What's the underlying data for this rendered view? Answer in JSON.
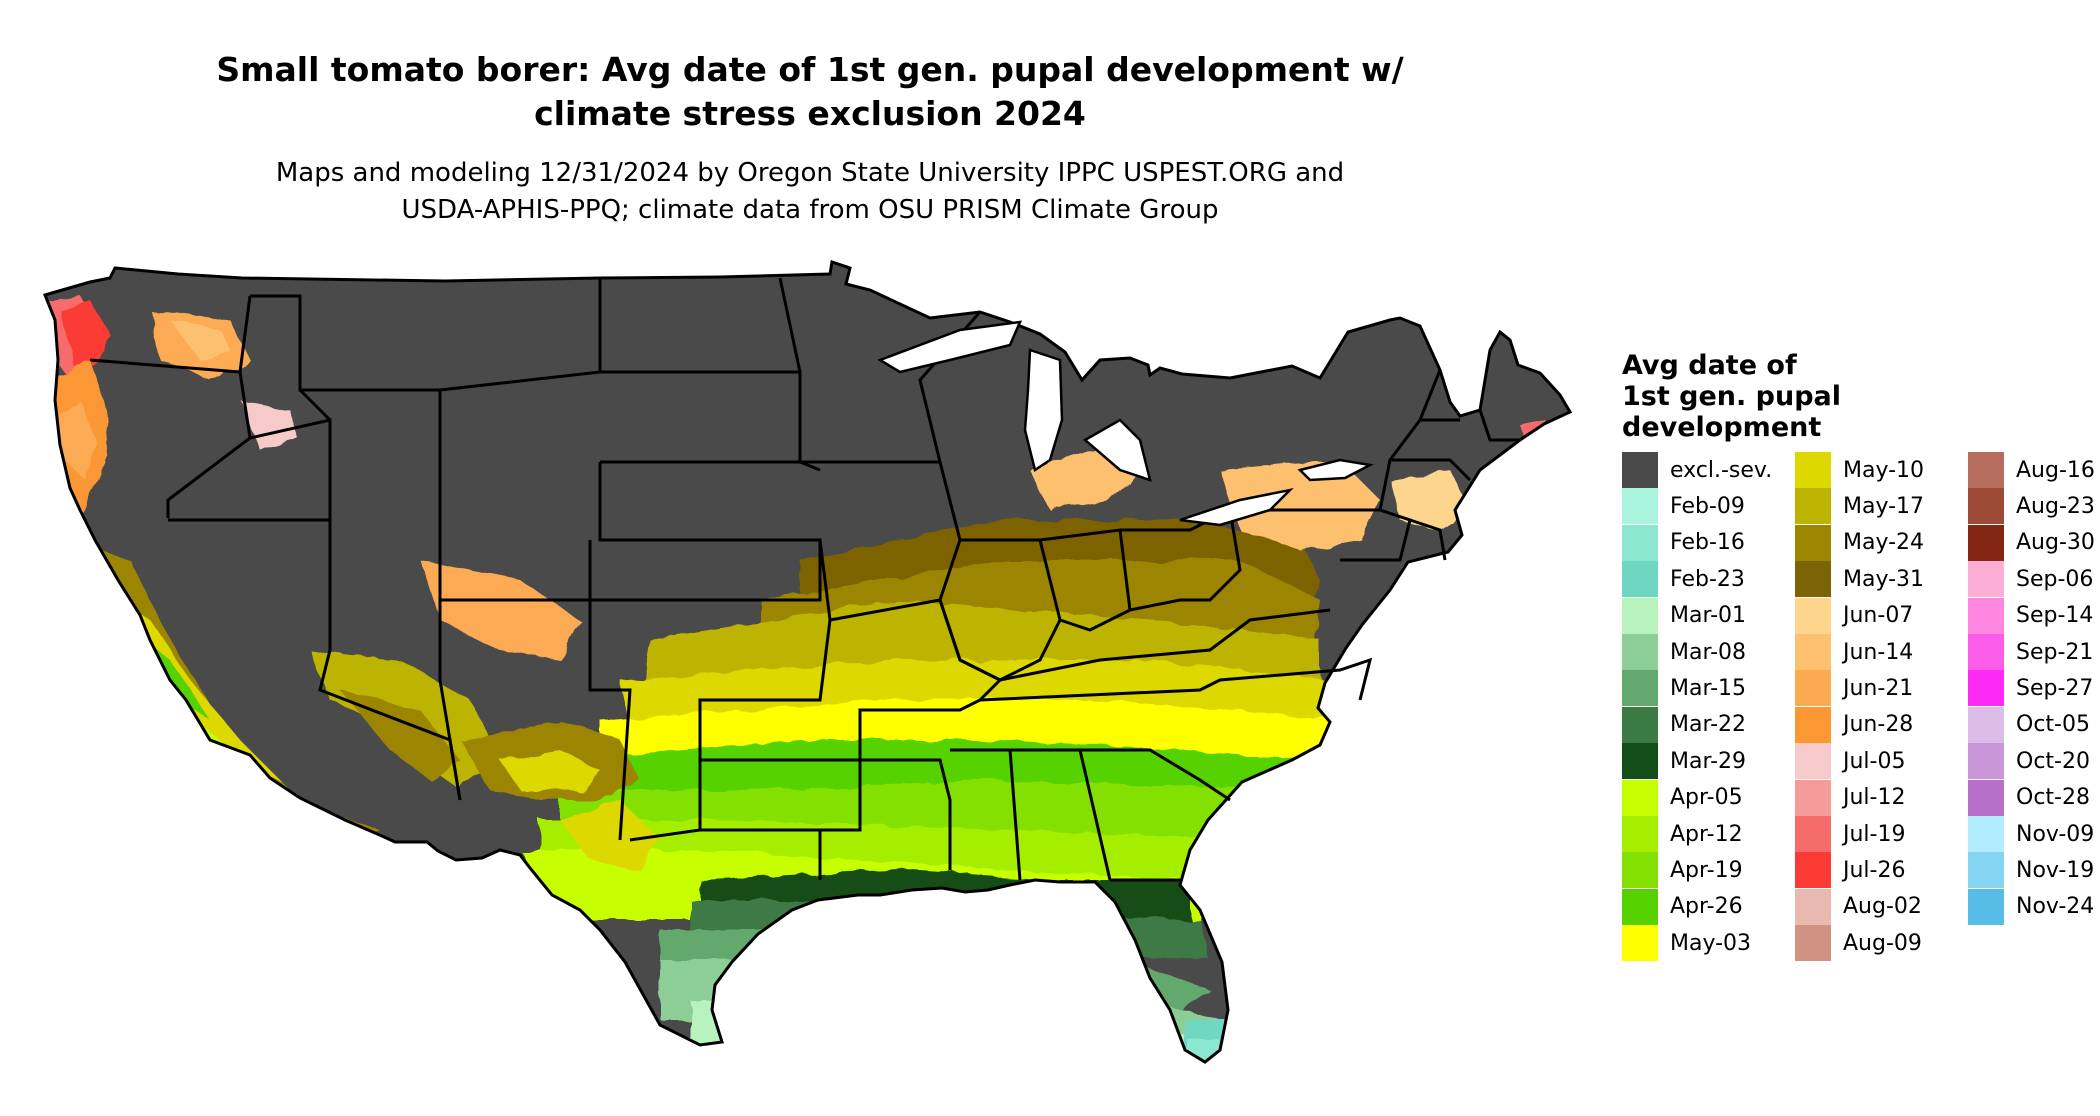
{
  "title": {
    "line1": "Small tomato borer: Avg date of 1st gen. pupal development w/",
    "line2": "climate stress exclusion 2024"
  },
  "subtitle": {
    "line1": "Maps and modeling 12/31/2024 by Oregon State University IPPC USPEST.ORG and",
    "line2": "USDA-APHIS-PPQ; climate data from OSU PRISM Climate Group"
  },
  "legend": {
    "title_lines": [
      "Avg date of",
      "1st gen. pupal",
      "development"
    ],
    "items": [
      {
        "label": "excl.-sev.",
        "color": "#4a4a4a"
      },
      {
        "label": "Feb-09",
        "color": "#aaf4de"
      },
      {
        "label": "Feb-16",
        "color": "#8ce7d0"
      },
      {
        "label": "Feb-23",
        "color": "#6fd7c1"
      },
      {
        "label": "Mar-01",
        "color": "#b8f3bd"
      },
      {
        "label": "Mar-08",
        "color": "#8cce96"
      },
      {
        "label": "Mar-15",
        "color": "#63a86d"
      },
      {
        "label": "Mar-22",
        "color": "#3c7a44"
      },
      {
        "label": "Mar-29",
        "color": "#134d17"
      },
      {
        "label": "Apr-05",
        "color": "#c8ff00"
      },
      {
        "label": "Apr-12",
        "color": "#a6ee00"
      },
      {
        "label": "Apr-19",
        "color": "#83e000"
      },
      {
        "label": "Apr-26",
        "color": "#55d200"
      },
      {
        "label": "May-03",
        "color": "#ffff00"
      },
      {
        "label": "May-10",
        "color": "#dcd800"
      },
      {
        "label": "May-17",
        "color": "#bcb400"
      },
      {
        "label": "May-24",
        "color": "#9c8500"
      },
      {
        "label": "May-31",
        "color": "#7b6306"
      },
      {
        "label": "Jun-07",
        "color": "#fdd58d"
      },
      {
        "label": "Jun-14",
        "color": "#fdc06e"
      },
      {
        "label": "Jun-21",
        "color": "#fcaa52"
      },
      {
        "label": "Jun-28",
        "color": "#fb9834"
      },
      {
        "label": "Jul-05",
        "color": "#f5cac8"
      },
      {
        "label": "Jul-12",
        "color": "#f59c9a"
      },
      {
        "label": "Jul-19",
        "color": "#f56c6a"
      },
      {
        "label": "Jul-26",
        "color": "#fb3a34"
      },
      {
        "label": "Aug-02",
        "color": "#e9b8ae"
      },
      {
        "label": "Aug-09",
        "color": "#cf9283"
      },
      {
        "label": "Aug-16",
        "color": "#b66d5d"
      },
      {
        "label": "Aug-23",
        "color": "#9c4a36"
      },
      {
        "label": "Aug-30",
        "color": "#842614"
      },
      {
        "label": "Sep-06",
        "color": "#fcaed6"
      },
      {
        "label": "Sep-14",
        "color": "#fc86e0"
      },
      {
        "label": "Sep-21",
        "color": "#fc5cea"
      },
      {
        "label": "Sep-27",
        "color": "#fc2af4"
      },
      {
        "label": "Oct-05",
        "color": "#dcbde8"
      },
      {
        "label": "Oct-20",
        "color": "#c996da"
      },
      {
        "label": "Oct-28",
        "color": "#b770c8"
      },
      {
        "label": "Nov-09",
        "color": "#b2edff"
      },
      {
        "label": "Nov-19",
        "color": "#84d5f2"
      },
      {
        "label": "Nov-24",
        "color": "#58bde6"
      }
    ]
  }
}
